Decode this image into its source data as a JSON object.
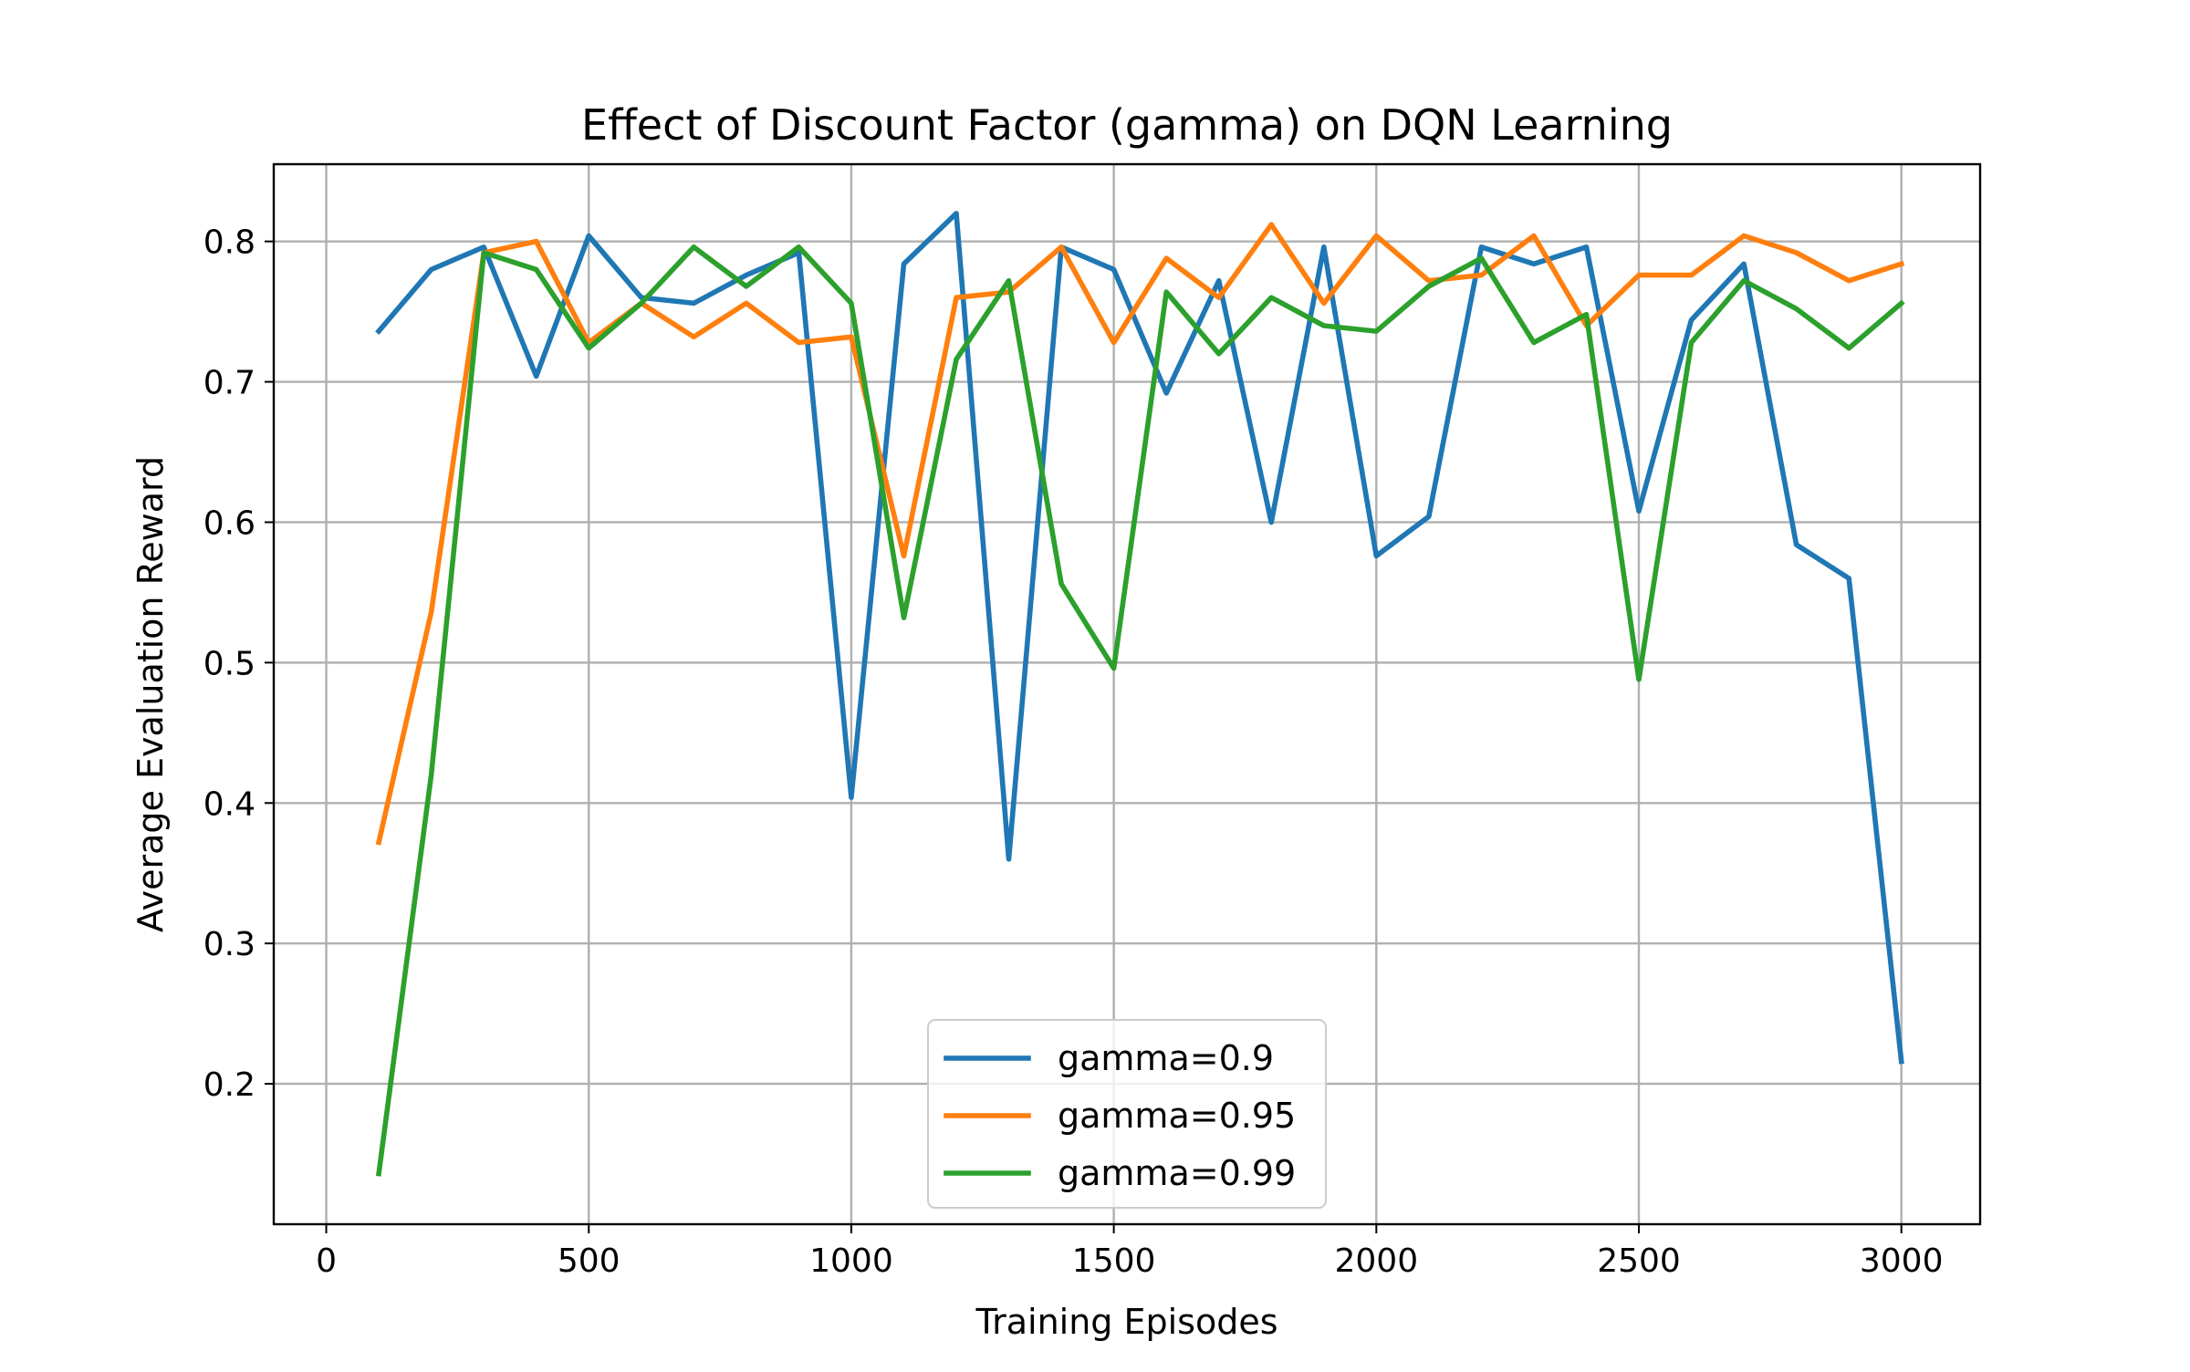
{
  "chart_data": {
    "type": "line",
    "title": "Effect of Discount Factor (gamma) on DQN Learning",
    "xlabel": "Training Episodes",
    "ylabel": "Average Evaluation Reward",
    "xlim": [
      -100,
      3150
    ],
    "ylim": [
      0.1,
      0.855
    ],
    "x_ticks": [
      0,
      500,
      1000,
      1500,
      2000,
      2500,
      3000
    ],
    "y_ticks": [
      0.2,
      0.3,
      0.4,
      0.5,
      0.6,
      0.7,
      0.8
    ],
    "grid": true,
    "legend_position": "lower-center",
    "x": [
      100,
      200,
      300,
      400,
      500,
      600,
      700,
      800,
      900,
      1000,
      1100,
      1200,
      1300,
      1400,
      1500,
      1600,
      1700,
      1800,
      1900,
      2000,
      2100,
      2200,
      2300,
      2400,
      2500,
      2600,
      2700,
      2800,
      2900,
      3000
    ],
    "series": [
      {
        "name": "gamma=0.9",
        "color": "#1f77b4",
        "values": [
          0.736,
          0.78,
          0.796,
          0.704,
          0.804,
          0.76,
          0.756,
          0.776,
          0.792,
          0.404,
          0.784,
          0.82,
          0.36,
          0.796,
          0.78,
          0.692,
          0.772,
          0.6,
          0.796,
          0.576,
          0.604,
          0.796,
          0.784,
          0.796,
          0.608,
          0.744,
          0.784,
          0.584,
          0.56,
          0.216
        ]
      },
      {
        "name": "gamma=0.95",
        "color": "#ff7f0e",
        "values": [
          0.372,
          0.536,
          0.792,
          0.8,
          0.728,
          0.756,
          0.732,
          0.756,
          0.728,
          0.732,
          0.576,
          0.76,
          0.764,
          0.796,
          0.728,
          0.788,
          0.76,
          0.812,
          0.756,
          0.804,
          0.772,
          0.776,
          0.804,
          0.74,
          0.776,
          0.776,
          0.804,
          0.792,
          0.772,
          0.784
        ]
      },
      {
        "name": "gamma=0.99",
        "color": "#2ca02c",
        "values": [
          0.136,
          0.42,
          0.792,
          0.78,
          0.724,
          0.756,
          0.796,
          0.768,
          0.796,
          0.756,
          0.532,
          0.716,
          0.772,
          0.556,
          0.496,
          0.764,
          0.72,
          0.76,
          0.74,
          0.736,
          0.768,
          0.788,
          0.728,
          0.748,
          0.488,
          0.728,
          0.772,
          0.752,
          0.724,
          0.756
        ]
      }
    ]
  }
}
